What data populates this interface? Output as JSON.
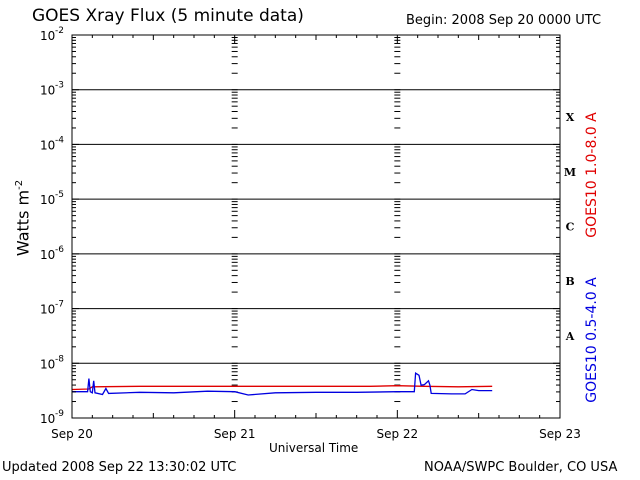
{
  "header": {
    "title": "GOES Xray Flux (5 minute data)",
    "begin": "Begin:  2008 Sep 20 0000 UTC"
  },
  "footer": {
    "updated": "Updated 2008 Sep 22 13:30:02 UTC",
    "credit": "NOAA/SWPC Boulder, CO USA"
  },
  "chart_data": {
    "type": "line",
    "title": "GOES Xray Flux (5 minute data)",
    "xlabel": "Universal Time",
    "ylabel": "Watts m",
    "ylabel_superscript": "-2",
    "y_scale": "log",
    "ylim_exponents": [
      -9,
      -2
    ],
    "y_ticks": [
      {
        "base": "10",
        "exp": "-2"
      },
      {
        "base": "10",
        "exp": "-3"
      },
      {
        "base": "10",
        "exp": "-4"
      },
      {
        "base": "10",
        "exp": "-5"
      },
      {
        "base": "10",
        "exp": "-6"
      },
      {
        "base": "10",
        "exp": "-7"
      },
      {
        "base": "10",
        "exp": "-8"
      },
      {
        "base": "10",
        "exp": "-9"
      }
    ],
    "x_ticks": [
      "Sep 20",
      "Sep 21",
      "Sep 22",
      "Sep 23"
    ],
    "xlim_hours": [
      0,
      72
    ],
    "flare_classes": [
      {
        "label": "X",
        "exp": -3.5
      },
      {
        "label": "M",
        "exp": -4.5
      },
      {
        "label": "C",
        "exp": -5.5
      },
      {
        "label": "B",
        "exp": -6.5
      },
      {
        "label": "A",
        "exp": -7.5
      }
    ],
    "grid": true,
    "series": [
      {
        "name": "GOES10 1.0-8.0 A",
        "color": "#e00000",
        "points": [
          [
            0.0,
            -8.48
          ],
          [
            2.5,
            -8.47
          ],
          [
            3.0,
            -8.43
          ],
          [
            10.0,
            -8.42
          ],
          [
            20.0,
            -8.42
          ],
          [
            24.0,
            -8.42
          ],
          [
            26.0,
            -8.42
          ],
          [
            36.0,
            -8.42
          ],
          [
            44.0,
            -8.42
          ],
          [
            48.0,
            -8.41
          ],
          [
            52.0,
            -8.42
          ],
          [
            57.0,
            -8.43
          ],
          [
            62.0,
            -8.42
          ]
        ]
      },
      {
        "name": "GOES10 0.5-4.0 A",
        "color": "#0000e0",
        "points": [
          [
            0.0,
            -8.52
          ],
          [
            2.3,
            -8.52
          ],
          [
            2.5,
            -8.28
          ],
          [
            2.7,
            -8.52
          ],
          [
            3.0,
            -8.54
          ],
          [
            3.2,
            -8.32
          ],
          [
            3.4,
            -8.54
          ],
          [
            4.5,
            -8.57
          ],
          [
            5.0,
            -8.46
          ],
          [
            5.4,
            -8.55
          ],
          [
            10.0,
            -8.53
          ],
          [
            15.0,
            -8.54
          ],
          [
            20.0,
            -8.51
          ],
          [
            24.0,
            -8.52
          ],
          [
            26.0,
            -8.58
          ],
          [
            30.0,
            -8.54
          ],
          [
            36.0,
            -8.53
          ],
          [
            42.0,
            -8.53
          ],
          [
            48.0,
            -8.52
          ],
          [
            50.5,
            -8.52
          ],
          [
            50.7,
            -8.18
          ],
          [
            51.2,
            -8.22
          ],
          [
            51.5,
            -8.4
          ],
          [
            52.0,
            -8.39
          ],
          [
            52.6,
            -8.32
          ],
          [
            52.8,
            -8.4
          ],
          [
            53.0,
            -8.55
          ],
          [
            56.0,
            -8.56
          ],
          [
            58.0,
            -8.56
          ],
          [
            59.0,
            -8.48
          ],
          [
            60.0,
            -8.5
          ],
          [
            62.0,
            -8.5
          ]
        ]
      }
    ]
  }
}
